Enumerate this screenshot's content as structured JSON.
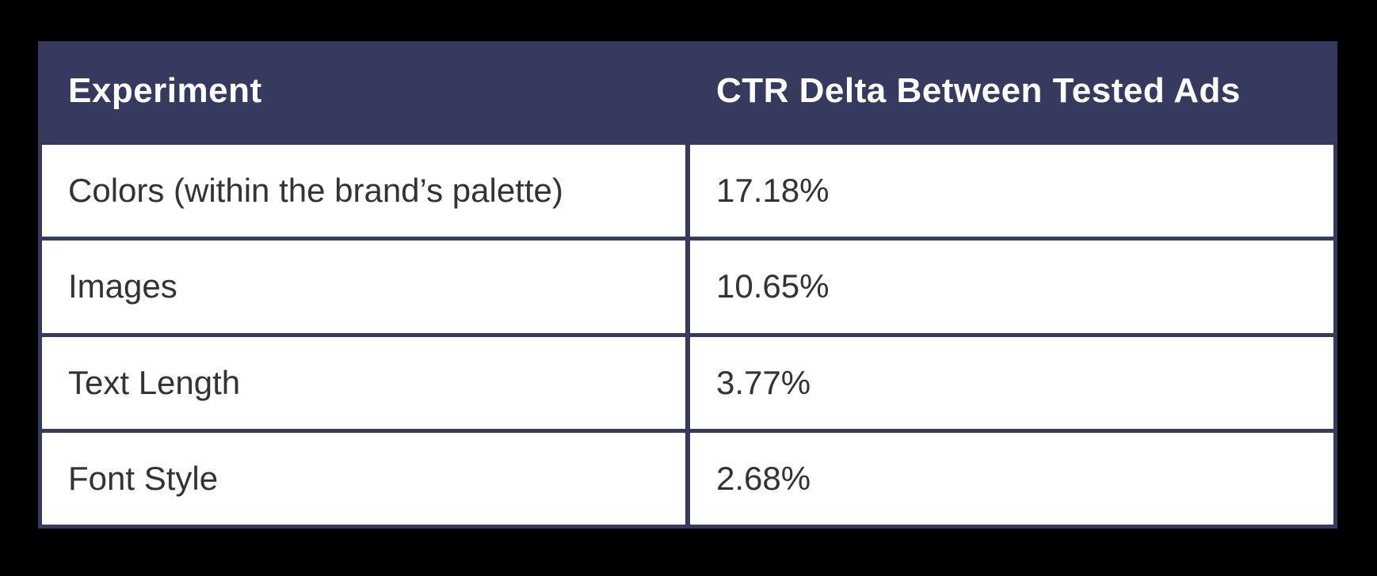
{
  "chart_data": {
    "type": "table",
    "columns": [
      "Experiment",
      "CTR Delta Between Tested Ads"
    ],
    "rows": [
      {
        "experiment": "Colors (within the brand’s palette)",
        "ctr_delta": "17.18%"
      },
      {
        "experiment": "Images",
        "ctr_delta": "10.65%"
      },
      {
        "experiment": "Text Length",
        "ctr_delta": "3.77%"
      },
      {
        "experiment": "Font Style",
        "ctr_delta": "2.68%"
      }
    ],
    "ctr_delta_numeric": [
      17.18,
      10.65,
      3.77,
      2.68
    ]
  },
  "colors": {
    "page_bg": "#000000",
    "table_border": "#363a5e",
    "header_bg": "#363a5e",
    "header_text": "#ffffff",
    "row_bg": "#ffffff",
    "body_text": "#333333"
  }
}
